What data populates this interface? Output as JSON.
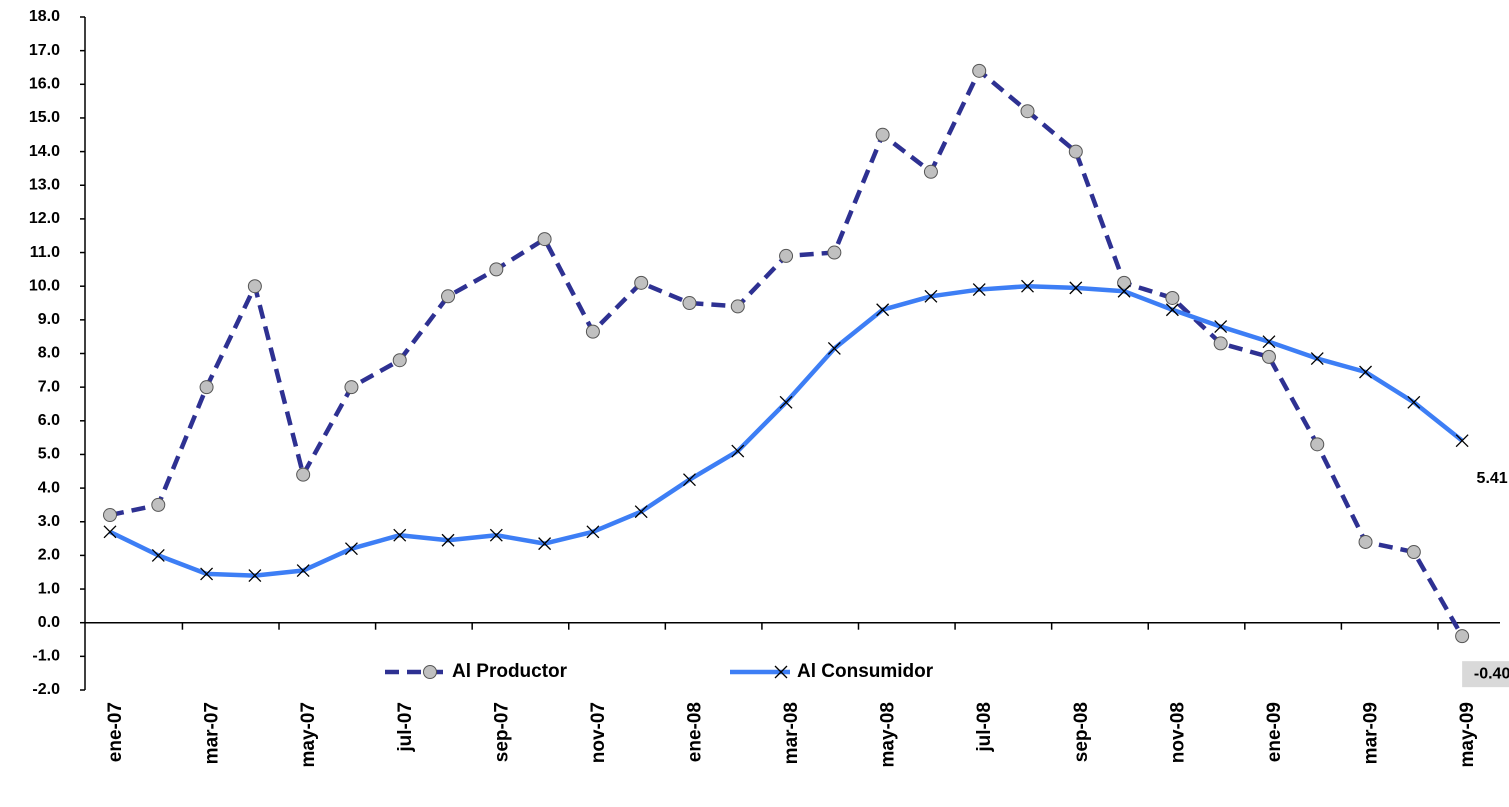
{
  "chart_data": {
    "type": "line",
    "categories": [
      "ene-07",
      null,
      "mar-07",
      null,
      "may-07",
      null,
      "jul-07",
      null,
      "sep-07",
      null,
      "nov-07",
      null,
      "ene-08",
      null,
      "mar-08",
      null,
      "may-08",
      null,
      "jul-08",
      null,
      "sep-08",
      null,
      "nov-08",
      null,
      "ene-09",
      null,
      "mar-09",
      null,
      "may-09"
    ],
    "series": [
      {
        "name": "Al Productor",
        "color": "#2e3192",
        "marker_color": "#c0c0c0",
        "values": [
          3.2,
          3.5,
          7.0,
          10.0,
          4.4,
          7.0,
          7.8,
          9.7,
          10.5,
          11.4,
          8.65,
          10.1,
          9.5,
          9.4,
          10.9,
          11.0,
          14.5,
          13.4,
          16.4,
          15.2,
          14.0,
          10.1,
          9.65,
          8.3,
          7.9,
          5.3,
          2.4,
          2.1,
          -0.4
        ],
        "value_labels": [
          null,
          null,
          null,
          null,
          null,
          null,
          null,
          null,
          null,
          null,
          null,
          null,
          null,
          null,
          null,
          null,
          null,
          null,
          null,
          null,
          null,
          null,
          null,
          null,
          null,
          null,
          null,
          null,
          "-0.40"
        ]
      },
      {
        "name": "Al Consumidor",
        "color": "#3d7ef5",
        "marker_color": "#000000",
        "values": [
          2.7,
          2.0,
          1.45,
          1.4,
          1.55,
          2.2,
          2.6,
          2.45,
          2.6,
          2.35,
          2.7,
          3.3,
          4.25,
          5.1,
          6.55,
          8.15,
          9.3,
          9.7,
          9.9,
          10.0,
          9.95,
          9.85,
          9.3,
          8.8,
          8.35,
          7.85,
          7.45,
          6.55,
          5.41
        ],
        "value_labels": [
          null,
          null,
          null,
          null,
          null,
          null,
          null,
          null,
          null,
          null,
          null,
          null,
          null,
          null,
          null,
          null,
          null,
          null,
          null,
          null,
          null,
          null,
          null,
          null,
          null,
          null,
          null,
          null,
          "5.41"
        ]
      }
    ],
    "ylim": [
      -2,
      18
    ],
    "yticks": [
      {
        "value": -2,
        "label": "-2.0"
      },
      {
        "value": -1,
        "label": "-1.0"
      },
      {
        "value": 0,
        "label": "0.0"
      },
      {
        "value": 1,
        "label": "1.0"
      },
      {
        "value": 2,
        "label": "2.0"
      },
      {
        "value": 3,
        "label": "3.0"
      },
      {
        "value": 4,
        "label": "4.0"
      },
      {
        "value": 5,
        "label": "5.0"
      },
      {
        "value": 6,
        "label": "6.0"
      },
      {
        "value": 7,
        "label": "7.0"
      },
      {
        "value": 8,
        "label": "8.0"
      },
      {
        "value": 9,
        "label": "9.0"
      },
      {
        "value": 10,
        "label": "10.0"
      },
      {
        "value": 11,
        "label": "11.0"
      },
      {
        "value": 12,
        "label": "12.0"
      },
      {
        "value": 13,
        "label": "13.0"
      },
      {
        "value": 14,
        "label": "14.0"
      },
      {
        "value": 15,
        "label": "15.0"
      },
      {
        "value": 16,
        "label": "16.0"
      },
      {
        "value": 17,
        "label": "17.0"
      },
      {
        "value": 18,
        "label": "18.0"
      }
    ],
    "grid": false,
    "legend": "bottom"
  }
}
